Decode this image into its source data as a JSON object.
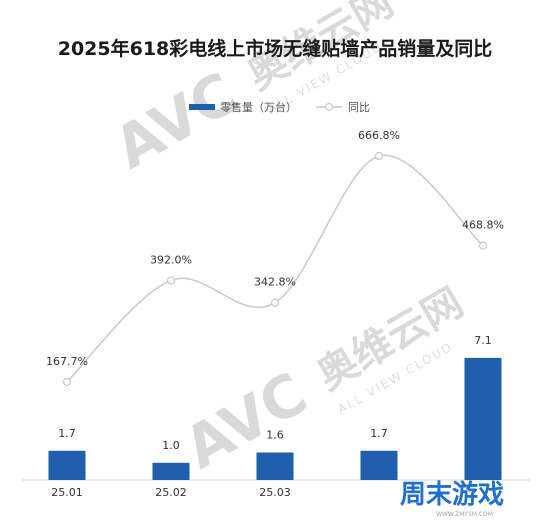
{
  "chart_data": {
    "type": "bar",
    "title": "2025年618彩电线上市场无缝贴墙产品销量及同比",
    "categories": [
      "25.01",
      "25.02",
      "25.03",
      "",
      ""
    ],
    "series": [
      {
        "name": "零售量（万台）",
        "type": "bar",
        "color": "#1f5fad",
        "values": [
          1.7,
          1.0,
          1.6,
          1.7,
          7.1
        ],
        "labels": [
          "1.7",
          "1.0",
          "1.6",
          "1.7",
          "7.1"
        ]
      },
      {
        "name": "同比",
        "type": "line",
        "smooth": true,
        "color": "#c8c8c8",
        "values": [
          167.7,
          392.0,
          342.8,
          666.8,
          468.8
        ],
        "labels": [
          "167.7%",
          "392.0%",
          "342.8%",
          "666.8%",
          "468.8%"
        ]
      }
    ],
    "legend_position": "top-center",
    "grid": false
  },
  "watermark": {
    "brand": "AVC",
    "name_cn": "奥维云网",
    "name_en": "ALL VIEW CLOUD"
  },
  "site_badge": {
    "name": "周末游戏",
    "url": "WWW.ZMYSM.COM"
  },
  "colors": {
    "bar": "#1f5fad",
    "line": "#c8c8c8",
    "watermark": "#d9d9d9",
    "site": "#1f6fd1"
  }
}
